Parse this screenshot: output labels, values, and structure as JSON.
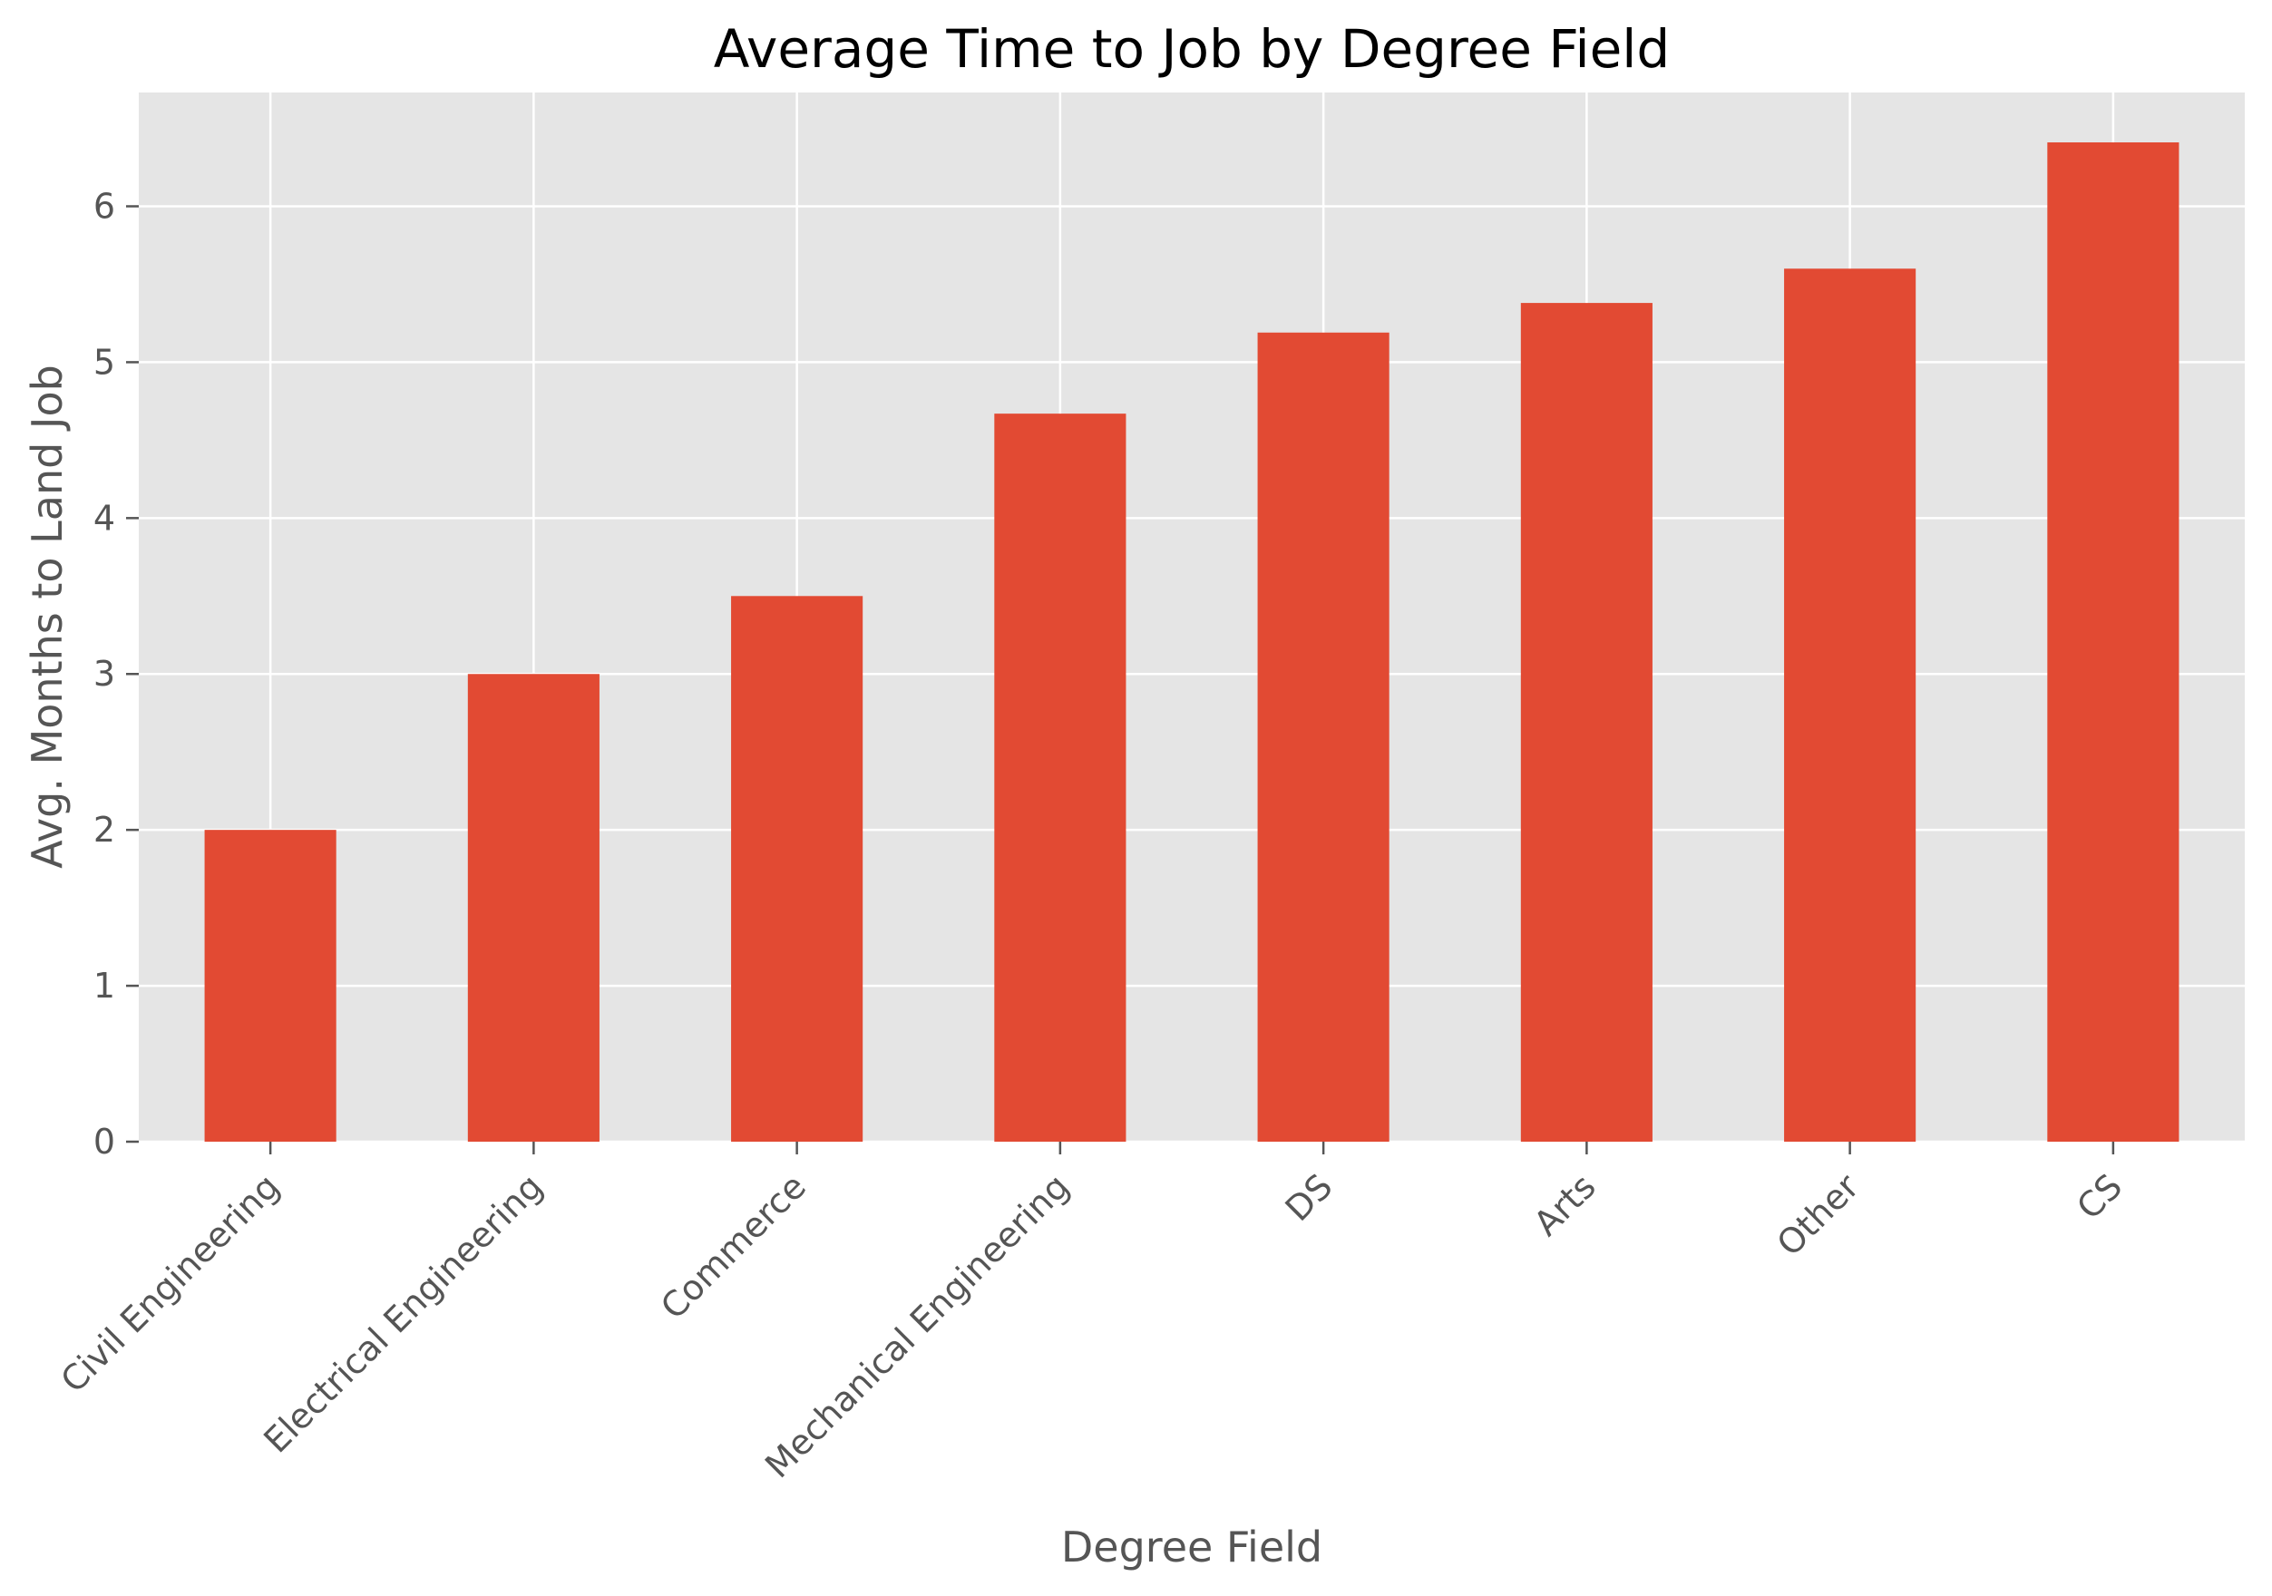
{
  "chart_data": {
    "type": "bar",
    "title": "Average Time to Job by Degree Field",
    "xlabel": "Degree Field",
    "ylabel": "Avg. Months to Land Job",
    "categories": [
      "Civil Engineering",
      "Electrical Engineering",
      "Commerce",
      "Mechanical Engineering",
      "DS",
      "Arts",
      "Other",
      "CS"
    ],
    "values": [
      2.0,
      3.0,
      3.5,
      4.67,
      5.19,
      5.38,
      5.6,
      6.41
    ],
    "ylim": [
      0,
      6.73
    ],
    "yticks": [
      "0",
      "1",
      "2",
      "3",
      "4",
      "5",
      "6"
    ],
    "grid": true,
    "colors": {
      "bar": "#E24A33",
      "plot_background": "#E5E5E5",
      "grid": "#FFFFFF",
      "text": "#555555"
    }
  }
}
